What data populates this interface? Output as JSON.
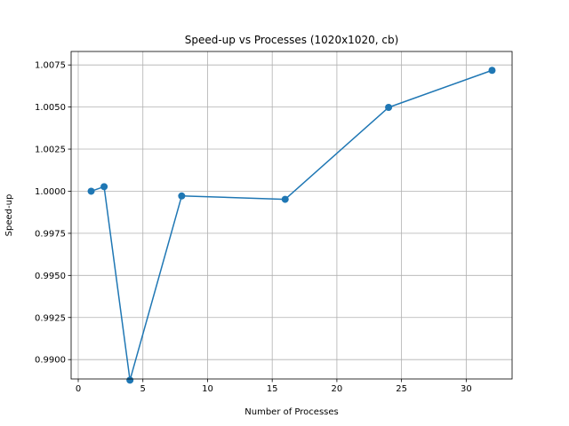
{
  "chart_data": {
    "type": "line",
    "title": "Speed-up vs Processes (1020x1020, cb)",
    "xlabel": "Number of Processes",
    "ylabel": "Speed-up",
    "xlim": [
      -0.55,
      33.55
    ],
    "ylim": [
      0.98885,
      1.0083
    ],
    "xticks": [
      0,
      5,
      10,
      15,
      20,
      25,
      30
    ],
    "yticks": [
      0.99,
      0.9925,
      0.995,
      0.9975,
      1.0,
      1.0025,
      1.005,
      1.0075
    ],
    "ytick_labels": [
      "0.9900",
      "0.9925",
      "0.9950",
      "0.9975",
      "1.0000",
      "1.0025",
      "1.0050",
      "1.0075"
    ],
    "grid": true,
    "color": "#1f77b4",
    "marker": "circle",
    "series": [
      {
        "x": [
          1,
          2,
          4,
          8,
          16,
          24,
          32
        ],
        "y": [
          1.0,
          1.00027,
          0.98878,
          0.99972,
          0.99952,
          1.00498,
          1.00718
        ]
      }
    ]
  }
}
